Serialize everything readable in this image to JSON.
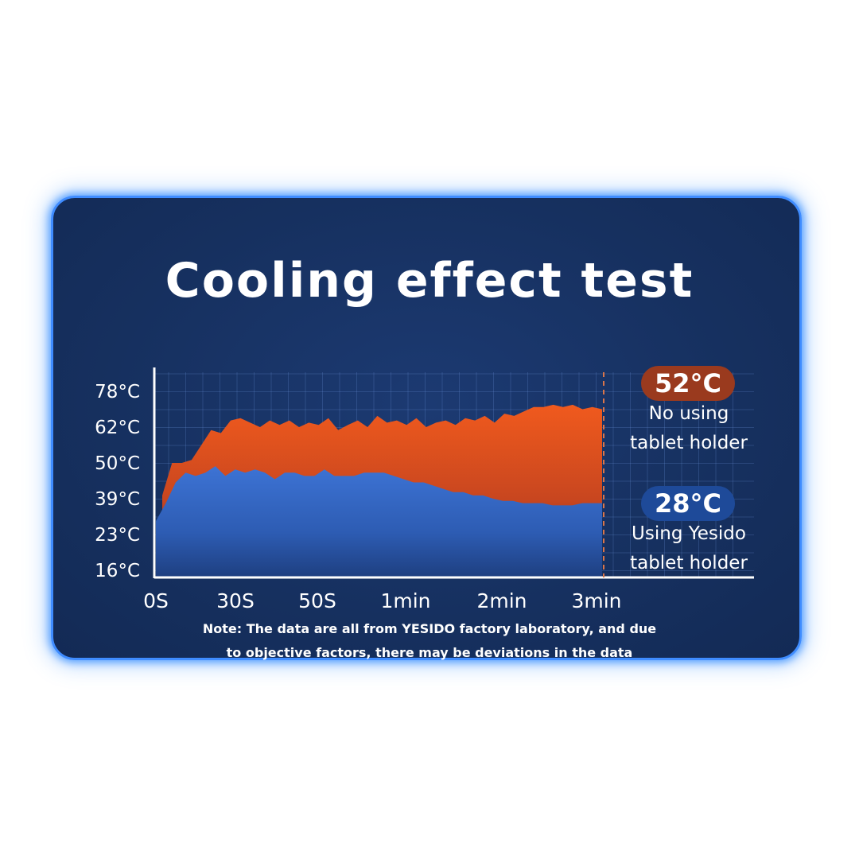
{
  "title": "Cooling effect test",
  "note_line1": "Note: The data are all from YESIDO factory laboratory, and due",
  "note_line2": "to objective factors, there may be deviations in the data",
  "legend": {
    "hot_badge": "52°C",
    "hot_label_line1": "No using",
    "hot_label_line2": "tablet holder",
    "cool_badge": "28°C",
    "cool_label_line1": "Using Yesido",
    "cool_label_line2": "tablet holder"
  },
  "colors": {
    "hot": "#e8521e",
    "cool": "#3568c7",
    "background": "#16305f",
    "border": "#3f8cff"
  },
  "chart_data": {
    "type": "area",
    "title": "Cooling effect test",
    "xlabel": "",
    "ylabel": "",
    "x_ticks": [
      "0S",
      "30S",
      "50S",
      "1min",
      "2min",
      "3min"
    ],
    "y_ticks": [
      "16°C",
      "23°C",
      "39°C",
      "50°C",
      "62°C",
      "78°C"
    ],
    "grid": true,
    "series": [
      {
        "name": "No using tablet holder",
        "color": "#e8521e",
        "values": [
          40,
          50,
          50,
          51,
          56,
          61,
          60,
          65,
          66,
          64,
          62,
          65,
          63,
          65,
          62,
          64,
          63,
          66,
          61,
          63,
          65,
          62,
          67,
          64,
          65,
          63,
          66,
          62,
          64,
          65,
          63,
          66,
          65,
          67,
          64,
          68,
          67,
          69,
          71,
          71,
          72,
          71,
          72,
          70,
          71,
          70
        ]
      },
      {
        "name": "Using Yesido tablet holder",
        "color": "#3568c7",
        "values": [
          29,
          37,
          44,
          47,
          46,
          47,
          49,
          46,
          48,
          47,
          48,
          47,
          45,
          47,
          47,
          46,
          46,
          48,
          46,
          46,
          46,
          47,
          47,
          47,
          46,
          45,
          44,
          44,
          43,
          42,
          41,
          41,
          40,
          40,
          39,
          38,
          38,
          37,
          37,
          37,
          36,
          36,
          36,
          37,
          37,
          37
        ]
      }
    ]
  }
}
